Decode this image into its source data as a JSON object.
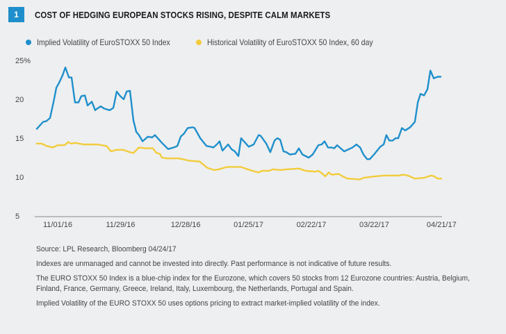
{
  "header": {
    "badge": "1",
    "title": "COST OF HEDGING EUROPEAN STOCKS RISING, DESPITE CALM MARKETS"
  },
  "colors": {
    "implied": "#1e8fcc",
    "historical": "#f2cc3c",
    "axis": "#888888",
    "badge": "#1e8fcc"
  },
  "legend": [
    {
      "label": "Implied Volatility of EuroSTOXX 50 Index",
      "color": "#1e8fcc"
    },
    {
      "label": "Historical Volatility of EuroSTOXX 50 Index, 60 day",
      "color": "#f2cc3c"
    }
  ],
  "chart_data": {
    "type": "line",
    "title": "COST OF HEDGING EUROPEAN STOCKS RISING, DESPITE CALM MARKETS",
    "xlabel": "",
    "ylabel": "%",
    "x_unit": "days since 11/01/16",
    "xlim": [
      -9.3,
      171
    ],
    "ylim": [
      5,
      25
    ],
    "yticks": [
      {
        "value": 25,
        "label": "25%"
      },
      {
        "value": 20,
        "label": "20"
      },
      {
        "value": 15,
        "label": "15"
      },
      {
        "value": 10,
        "label": "10"
      },
      {
        "value": 5,
        "label": "5"
      }
    ],
    "xticks": [
      {
        "value": 0,
        "label": "11/01/16"
      },
      {
        "value": 28,
        "label": "11/29/16"
      },
      {
        "value": 57,
        "label": "12/28/16"
      },
      {
        "value": 85,
        "label": "01/25/17"
      },
      {
        "value": 113,
        "label": "02/22/17"
      },
      {
        "value": 141,
        "label": "03/22/17"
      },
      {
        "value": 171,
        "label": "04/21/17"
      }
    ],
    "grid": false,
    "legend_position": "top-left",
    "series": [
      {
        "name": "Implied Volatility of EuroSTOXX 50 Index",
        "color": "#1e8fcc",
        "points": [
          [
            -9.3,
            16.2
          ],
          [
            -6.5,
            17.1
          ],
          [
            -5.0,
            17.2
          ],
          [
            -3.4,
            17.6
          ],
          [
            -1.9,
            19.6
          ],
          [
            -0.6,
            21.5
          ],
          [
            0.6,
            22.1
          ],
          [
            2.2,
            23.1
          ],
          [
            3.4,
            24.1
          ],
          [
            5.0,
            22.8
          ],
          [
            6.2,
            22.8
          ],
          [
            7.7,
            19.6
          ],
          [
            9.3,
            19.6
          ],
          [
            10.5,
            20.4
          ],
          [
            12.1,
            20.5
          ],
          [
            13.3,
            19.2
          ],
          [
            15.2,
            19.7
          ],
          [
            16.7,
            18.6
          ],
          [
            17.6,
            18.8
          ],
          [
            19.2,
            19.1
          ],
          [
            20.7,
            18.8
          ],
          [
            23.2,
            18.6
          ],
          [
            24.8,
            18.9
          ],
          [
            26.3,
            21.0
          ],
          [
            27.9,
            20.4
          ],
          [
            29.4,
            20.0
          ],
          [
            30.7,
            21.0
          ],
          [
            32.2,
            21.1
          ],
          [
            33.7,
            17.3
          ],
          [
            35.0,
            15.8
          ],
          [
            36.2,
            15.4
          ],
          [
            37.8,
            14.6
          ],
          [
            40.2,
            15.2
          ],
          [
            42.1,
            15.1
          ],
          [
            43.3,
            15.4
          ],
          [
            46.4,
            14.4
          ],
          [
            49.2,
            13.6
          ],
          [
            51.7,
            13.8
          ],
          [
            53.3,
            14.0
          ],
          [
            54.8,
            15.2
          ],
          [
            56.3,
            15.6
          ],
          [
            57.9,
            16.3
          ],
          [
            60.1,
            16.4
          ],
          [
            61.0,
            16.3
          ],
          [
            63.5,
            15.0
          ],
          [
            66.3,
            14.0
          ],
          [
            68.1,
            13.9
          ],
          [
            69.3,
            13.8
          ],
          [
            70.9,
            14.2
          ],
          [
            72.1,
            14.6
          ],
          [
            73.4,
            13.4
          ],
          [
            75.9,
            14.2
          ],
          [
            77.4,
            13.6
          ],
          [
            78.9,
            13.3
          ],
          [
            80.5,
            12.7
          ],
          [
            81.7,
            15.0
          ],
          [
            85.1,
            13.9
          ],
          [
            87.3,
            14.2
          ],
          [
            89.5,
            15.4
          ],
          [
            90.4,
            15.3
          ],
          [
            92.9,
            14.3
          ],
          [
            94.7,
            13.2
          ],
          [
            96.6,
            14.7
          ],
          [
            97.8,
            15.0
          ],
          [
            99.1,
            14.8
          ],
          [
            100.6,
            13.3
          ],
          [
            101.9,
            13.2
          ],
          [
            103.4,
            12.9
          ],
          [
            105.9,
            13.0
          ],
          [
            107.4,
            13.7
          ],
          [
            109.0,
            12.9
          ],
          [
            111.8,
            12.5
          ],
          [
            113.6,
            12.9
          ],
          [
            116.1,
            14.1
          ],
          [
            117.6,
            14.2
          ],
          [
            118.9,
            14.6
          ],
          [
            120.4,
            13.8
          ],
          [
            122.0,
            13.8
          ],
          [
            123.2,
            13.7
          ],
          [
            124.5,
            14.1
          ],
          [
            127.6,
            13.3
          ],
          [
            131.3,
            13.8
          ],
          [
            133.1,
            14.2
          ],
          [
            134.7,
            13.8
          ],
          [
            136.2,
            12.9
          ],
          [
            137.8,
            12.3
          ],
          [
            139.0,
            12.3
          ],
          [
            140.9,
            12.9
          ],
          [
            143.7,
            13.9
          ],
          [
            145.2,
            14.2
          ],
          [
            146.4,
            15.4
          ],
          [
            147.7,
            14.7
          ],
          [
            149.2,
            14.7
          ],
          [
            150.5,
            15.0
          ],
          [
            151.7,
            15.0
          ],
          [
            153.3,
            16.3
          ],
          [
            154.8,
            16.0
          ],
          [
            157.0,
            16.4
          ],
          [
            159.1,
            17.1
          ],
          [
            160.4,
            19.6
          ],
          [
            161.6,
            20.7
          ],
          [
            163.2,
            20.5
          ],
          [
            164.7,
            21.3
          ],
          [
            166.0,
            23.7
          ],
          [
            167.5,
            22.7
          ],
          [
            169.3,
            22.9
          ],
          [
            170.6,
            22.9
          ]
        ]
      },
      {
        "name": "Historical Volatility of EuroSTOXX 50 Index, 60 day",
        "color": "#f2cc3c",
        "points": [
          [
            -9.3,
            14.3
          ],
          [
            -7.1,
            14.3
          ],
          [
            -5.0,
            14.0
          ],
          [
            -2.2,
            13.8
          ],
          [
            0,
            14.1
          ],
          [
            3.1,
            14.1
          ],
          [
            4.6,
            14.5
          ],
          [
            6.2,
            14.3
          ],
          [
            7.7,
            14.4
          ],
          [
            11.5,
            14.2
          ],
          [
            17.6,
            14.2
          ],
          [
            21.7,
            14.0
          ],
          [
            23.8,
            13.3
          ],
          [
            26.0,
            13.5
          ],
          [
            29.1,
            13.5
          ],
          [
            32.2,
            13.2
          ],
          [
            33.7,
            13.1
          ],
          [
            36.2,
            13.8
          ],
          [
            39.3,
            13.7
          ],
          [
            42.4,
            13.7
          ],
          [
            44.0,
            13.1
          ],
          [
            45.5,
            13.0
          ],
          [
            46.4,
            12.5
          ],
          [
            48.6,
            12.4
          ],
          [
            53.9,
            12.4
          ],
          [
            58.8,
            12.1
          ],
          [
            63.2,
            12.0
          ],
          [
            66.6,
            11.2
          ],
          [
            69.7,
            10.9
          ],
          [
            71.8,
            11.0
          ],
          [
            75.5,
            11.3
          ],
          [
            81.7,
            11.3
          ],
          [
            83.6,
            11.1
          ],
          [
            86.7,
            10.8
          ],
          [
            89.5,
            10.6
          ],
          [
            91.0,
            10.8
          ],
          [
            94.1,
            10.8
          ],
          [
            96.0,
            11.0
          ],
          [
            99.1,
            10.9
          ],
          [
            102.2,
            11.0
          ],
          [
            107.4,
            11.1
          ],
          [
            110.5,
            10.8
          ],
          [
            114.6,
            10.7
          ],
          [
            116.1,
            10.8
          ],
          [
            117.6,
            10.5
          ],
          [
            119.2,
            10.1
          ],
          [
            120.7,
            10.6
          ],
          [
            122.0,
            10.3
          ],
          [
            125.1,
            10.4
          ],
          [
            126.9,
            10.1
          ],
          [
            129.1,
            9.8
          ],
          [
            134.7,
            9.7
          ],
          [
            136.2,
            9.9
          ],
          [
            141.5,
            10.1
          ],
          [
            145.5,
            10.2
          ],
          [
            151.7,
            10.2
          ],
          [
            153.9,
            10.3
          ],
          [
            156.0,
            10.2
          ],
          [
            159.1,
            9.8
          ],
          [
            163.2,
            9.9
          ],
          [
            166.3,
            10.2
          ],
          [
            167.8,
            10.1
          ],
          [
            169.3,
            9.8
          ],
          [
            170.9,
            9.8
          ]
        ]
      }
    ]
  },
  "notes": {
    "source": "Source: LPL Research, Bloomberg   04/24/17",
    "disclaimer": "Indexes are unmanaged and cannot be invested into directly. Past performance is not indicative of future results.",
    "definition": "The EURO STOXX 50 Index is a blue-chip index for the Eurozone, which covers 50 stocks from 12 Eurozone countries: Austria, Belgium, Finland, France, Germany, Greece, Ireland, Italy, Luxembourg, the Netherlands, Portugal and Spain.",
    "implied_note": "Implied Volatility of the EURO STOXX 50 uses options pricing to extract market-implied volatility of the index."
  }
}
